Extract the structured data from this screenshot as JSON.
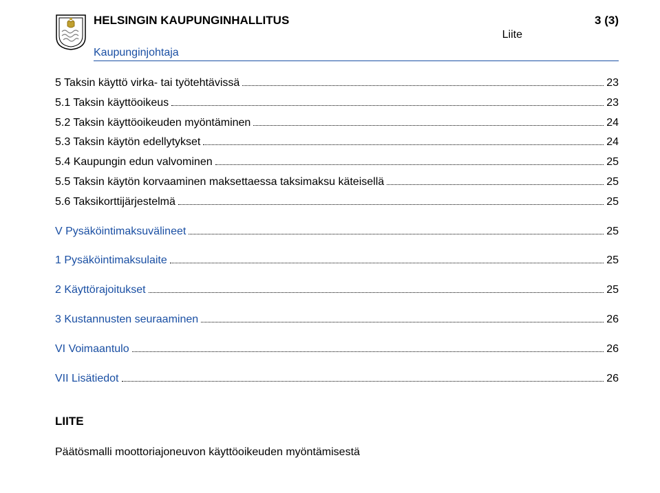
{
  "header": {
    "title": "HELSINGIN KAUPUNGINHALLITUS",
    "pagenum": "3 (3)",
    "liite": "Liite"
  },
  "subhead": "Kaupunginjohtaja",
  "toc": [
    {
      "label": "5 Taksin käyttö virka- tai työtehtävissä",
      "page": "23",
      "section": false,
      "blue": false
    },
    {
      "label": "5.1 Taksin käyttöoikeus",
      "page": "23",
      "section": false,
      "blue": false
    },
    {
      "label": "5.2 Taksin käyttöoikeuden myöntäminen",
      "page": "24",
      "section": false,
      "blue": false
    },
    {
      "label": "5.3 Taksin käytön edellytykset",
      "page": "24",
      "section": false,
      "blue": false
    },
    {
      "label": "5.4 Kaupungin edun valvominen",
      "page": "25",
      "section": false,
      "blue": false
    },
    {
      "label": "5.5 Taksin käytön korvaaminen maksettaessa taksimaksu käteisellä",
      "page": "25",
      "section": false,
      "blue": false
    },
    {
      "label": "5.6 Taksikorttijärjestelmä",
      "page": "25",
      "section": false,
      "blue": false
    },
    {
      "label": "V Pysäköintimaksuvälineet",
      "page": "25",
      "section": true,
      "blue": true
    },
    {
      "label": "1 Pysäköintimaksulaite",
      "page": "25",
      "section": true,
      "blue": true
    },
    {
      "label": "2 Käyttörajoitukset",
      "page": "25",
      "section": true,
      "blue": true
    },
    {
      "label": "3 Kustannusten seuraaminen",
      "page": "26",
      "section": true,
      "blue": true
    },
    {
      "label": "VI Voimaantulo",
      "page": "26",
      "section": true,
      "blue": true
    },
    {
      "label": "VII Lisätiedot",
      "page": "26",
      "section": true,
      "blue": true
    }
  ],
  "liite_block": {
    "title": "LIITE",
    "desc": "Päätösmalli moottoriajoneuvon käyttöoikeuden myöntämisestä"
  },
  "colors": {
    "blue": "#1a4fa3",
    "black": "#000000",
    "grey": "#808080"
  }
}
